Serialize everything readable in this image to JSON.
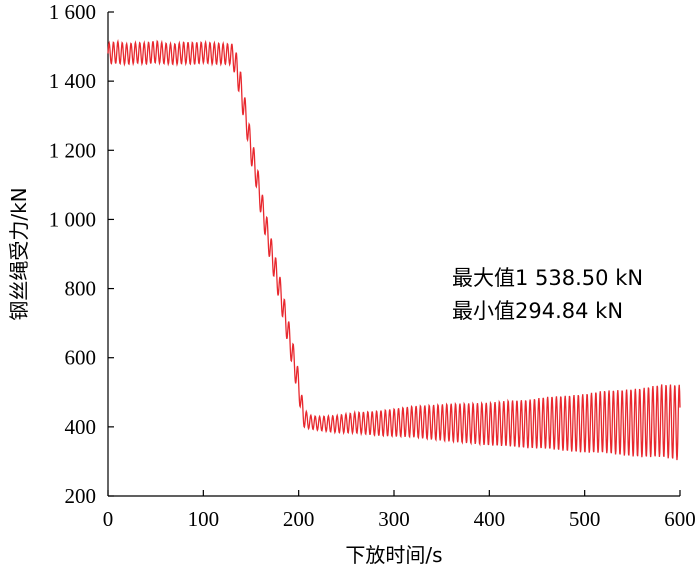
{
  "chart_data": {
    "type": "line",
    "title": "",
    "xlabel": "下放时间/s",
    "ylabel": "钢丝绳受力/kN",
    "xlim": [
      0,
      600
    ],
    "ylim": [
      200,
      1600
    ],
    "xticks": [
      0,
      100,
      200,
      300,
      400,
      500,
      600
    ],
    "xtick_labels": [
      "0",
      "100",
      "200",
      "300",
      "400",
      "500",
      "600"
    ],
    "yticks": [
      200,
      400,
      600,
      800,
      1000,
      1200,
      1400,
      1600
    ],
    "ytick_labels": [
      "200",
      "400",
      "600",
      "800",
      "1 000",
      "1 200",
      "1 400",
      "1 600"
    ],
    "grid": false,
    "series": [
      {
        "color": "#e8282e",
        "x": [
          0,
          10,
          20,
          30,
          40,
          50,
          60,
          70,
          80,
          90,
          100,
          110,
          120,
          130,
          135,
          140,
          145,
          150,
          155,
          160,
          165,
          170,
          175,
          180,
          185,
          190,
          195,
          200,
          205,
          210,
          220,
          240,
          260,
          280,
          300,
          320,
          340,
          360,
          380,
          400,
          420,
          440,
          460,
          480,
          500,
          520,
          540,
          560,
          580,
          600
        ],
        "y": [
          1480,
          1483,
          1478,
          1482,
          1480,
          1485,
          1480,
          1478,
          1482,
          1480,
          1483,
          1480,
          1479,
          1478,
          1440,
          1370,
          1290,
          1205,
          1140,
          1060,
          990,
          920,
          860,
          800,
          730,
          660,
          590,
          520,
          430,
          415,
          410,
          408,
          412,
          410,
          412,
          415,
          413,
          412,
          410,
          408,
          410,
          408,
          412,
          410,
          410,
          415,
          412,
          412,
          418,
          412
        ],
        "oscillation_amplitude": [
          30,
          32,
          30,
          30,
          31,
          32,
          30,
          30,
          31,
          32,
          30,
          31,
          30,
          30,
          40,
          45,
          40,
          42,
          40,
          40,
          40,
          40,
          40,
          40,
          40,
          40,
          40,
          40,
          30,
          20,
          20,
          25,
          30,
          35,
          40,
          45,
          50,
          55,
          58,
          62,
          66,
          70,
          75,
          80,
          85,
          90,
          95,
          100,
          105,
          110
        ]
      }
    ],
    "annotations": [
      "最大值1 538.50 kN",
      "最小值294.84 kN"
    ],
    "color": "#e8282e"
  }
}
